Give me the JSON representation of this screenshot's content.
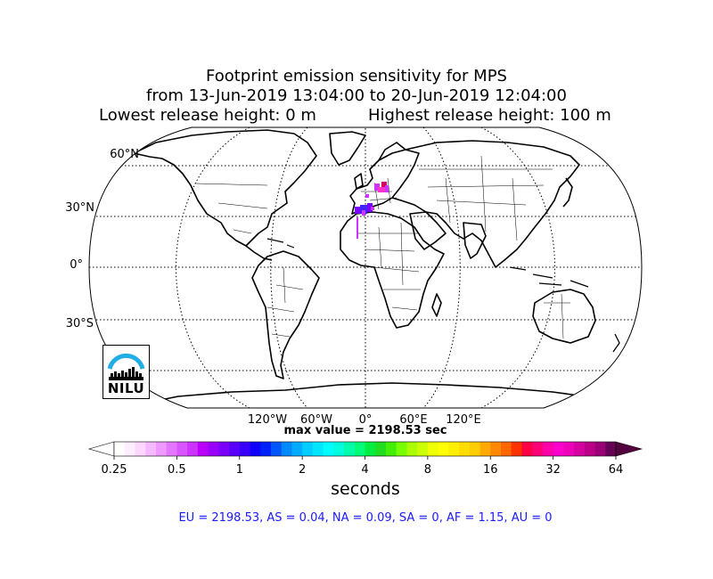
{
  "title": {
    "line1": "Footprint emission sensitivity for MPS",
    "line2": "from 13-Jun-2019 13:04:00 to 20-Jun-2019 12:04:00",
    "line3_left": "Lowest release height: 0 m",
    "line3_right": "Highest release height: 100 m"
  },
  "map": {
    "projection": "Robinson",
    "lat_labels": [
      "60°N",
      "30°N",
      "0°",
      "30°S"
    ],
    "lon_labels": [
      "120°W",
      "60°W",
      "0°",
      "60°E",
      "120°E"
    ],
    "gridlines": "dotted",
    "footprint_region": "Western Mediterranean / Western Europe",
    "footprint_colors": [
      "#7700ff",
      "#4422ff",
      "#cc33ff",
      "#ff33cc",
      "#cc0066"
    ]
  },
  "max_value": "max value = 2198.53 sec",
  "colorbar": {
    "ticks": [
      "0.25",
      "0.5",
      "1",
      "2",
      "4",
      "8",
      "16",
      "32",
      "64"
    ],
    "unit_label": "seconds",
    "scale": "log2",
    "colors": [
      "#ffffff",
      "#ffeeff",
      "#ffd6ff",
      "#f6b8ff",
      "#ee99ff",
      "#e477ff",
      "#d955ff",
      "#cc33ff",
      "#bb00ff",
      "#9900ff",
      "#7a00ff",
      "#5a00ff",
      "#3a00ff",
      "#1000ff",
      "#0022ff",
      "#0055ff",
      "#0088ff",
      "#00aaff",
      "#00ccff",
      "#00e5ff",
      "#00ffff",
      "#00ffdd",
      "#00ffaa",
      "#00ff77",
      "#00ee44",
      "#22dd22",
      "#44ee00",
      "#77ff00",
      "#aaff00",
      "#ccff00",
      "#eeff00",
      "#ffff00",
      "#ffee00",
      "#ffdd00",
      "#ffcc00",
      "#ffaa00",
      "#ff8800",
      "#ff6600",
      "#ff3300",
      "#ff0044",
      "#ff0077",
      "#ff00aa",
      "#ff00cc",
      "#ee00bb",
      "#d400a0",
      "#bb0088",
      "#990077",
      "#660055"
    ]
  },
  "region_summary": "EU = 2198.53,  AS = 0.04,  NA = 0.09,  SA = 0,  AF = 1.15,  AU = 0",
  "logo": {
    "text": "NILU",
    "arc_color": "#21aee6"
  }
}
